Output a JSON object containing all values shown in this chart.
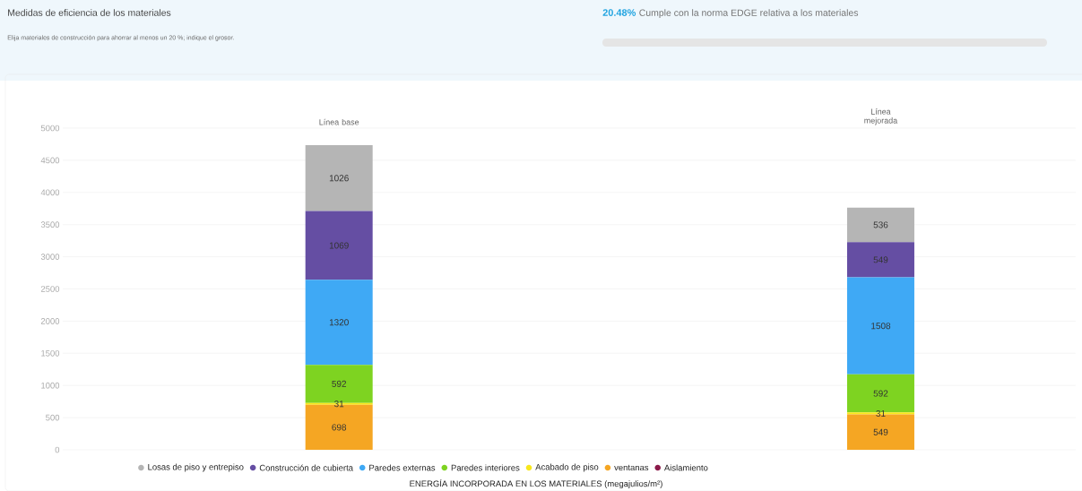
{
  "chart_data": {
    "type": "bar",
    "stacked": true,
    "title": "Medidas de eficiencia de los materiales",
    "subtitle": "Elija materiales de construcción para ahorrar al menos un 20 %; indique el grosor.",
    "annotations": [
      "20.48%",
      "Cumple con la norma EDGE relativa a los materiales"
    ],
    "xlabel": "ENERGÍA INCORPORADA EN LOS MATERIALES (megajulios/m²)",
    "categories": [
      "Línea base",
      "Línea mejorada"
    ],
    "series": [
      {
        "name": "Aislamiento",
        "color": "#8b1a4a",
        "values": [
          null,
          null
        ]
      },
      {
        "name": "ventanas",
        "color": "#f5a623",
        "values": [
          698,
          549
        ]
      },
      {
        "name": "Acabado de piso",
        "color": "#f8e71c",
        "values": [
          31,
          31
        ]
      },
      {
        "name": "Paredes interiores",
        "color": "#7ed321",
        "values": [
          592,
          592
        ]
      },
      {
        "name": "Paredes externas",
        "color": "#3fa9f5",
        "values": [
          1320,
          1508
        ]
      },
      {
        "name": "Construcción de cubierta",
        "color": "#654ea3",
        "values": [
          1069,
          549
        ]
      },
      {
        "name": "Losas de piso y entrepiso",
        "color": "#b5b5b5",
        "values": [
          1026,
          536
        ]
      }
    ],
    "ylim": [
      0,
      5000
    ],
    "yticks": [
      0,
      500,
      1000,
      1500,
      2000,
      2500,
      3000,
      3500,
      4000,
      4500,
      5000
    ],
    "grid": "y",
    "legend": "bottom",
    "data_labels": true
  }
}
